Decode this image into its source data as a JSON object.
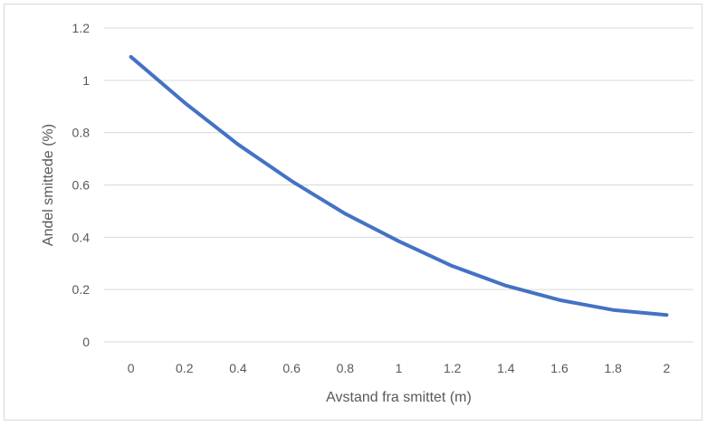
{
  "chart_data": {
    "type": "line",
    "title": "",
    "xlabel": "Avstand fra smittet (m)",
    "ylabel": "Andel smittede (%)",
    "x": [
      "0",
      "0.2",
      "0.4",
      "0.6",
      "0.8",
      "1",
      "1.2",
      "1.4",
      "1.6",
      "1.8",
      "2"
    ],
    "y_ticks": [
      "0",
      "0.2",
      "0.4",
      "0.6",
      "0.8",
      "1",
      "1.2"
    ],
    "ylim": [
      0,
      1.2
    ],
    "grid": true,
    "legend": "none",
    "series": [
      {
        "values": [
          1.09,
          0.915,
          0.755,
          0.615,
          0.49,
          0.385,
          0.29,
          0.215,
          0.16,
          0.122,
          0.103
        ],
        "color": "#4472c4"
      }
    ]
  }
}
